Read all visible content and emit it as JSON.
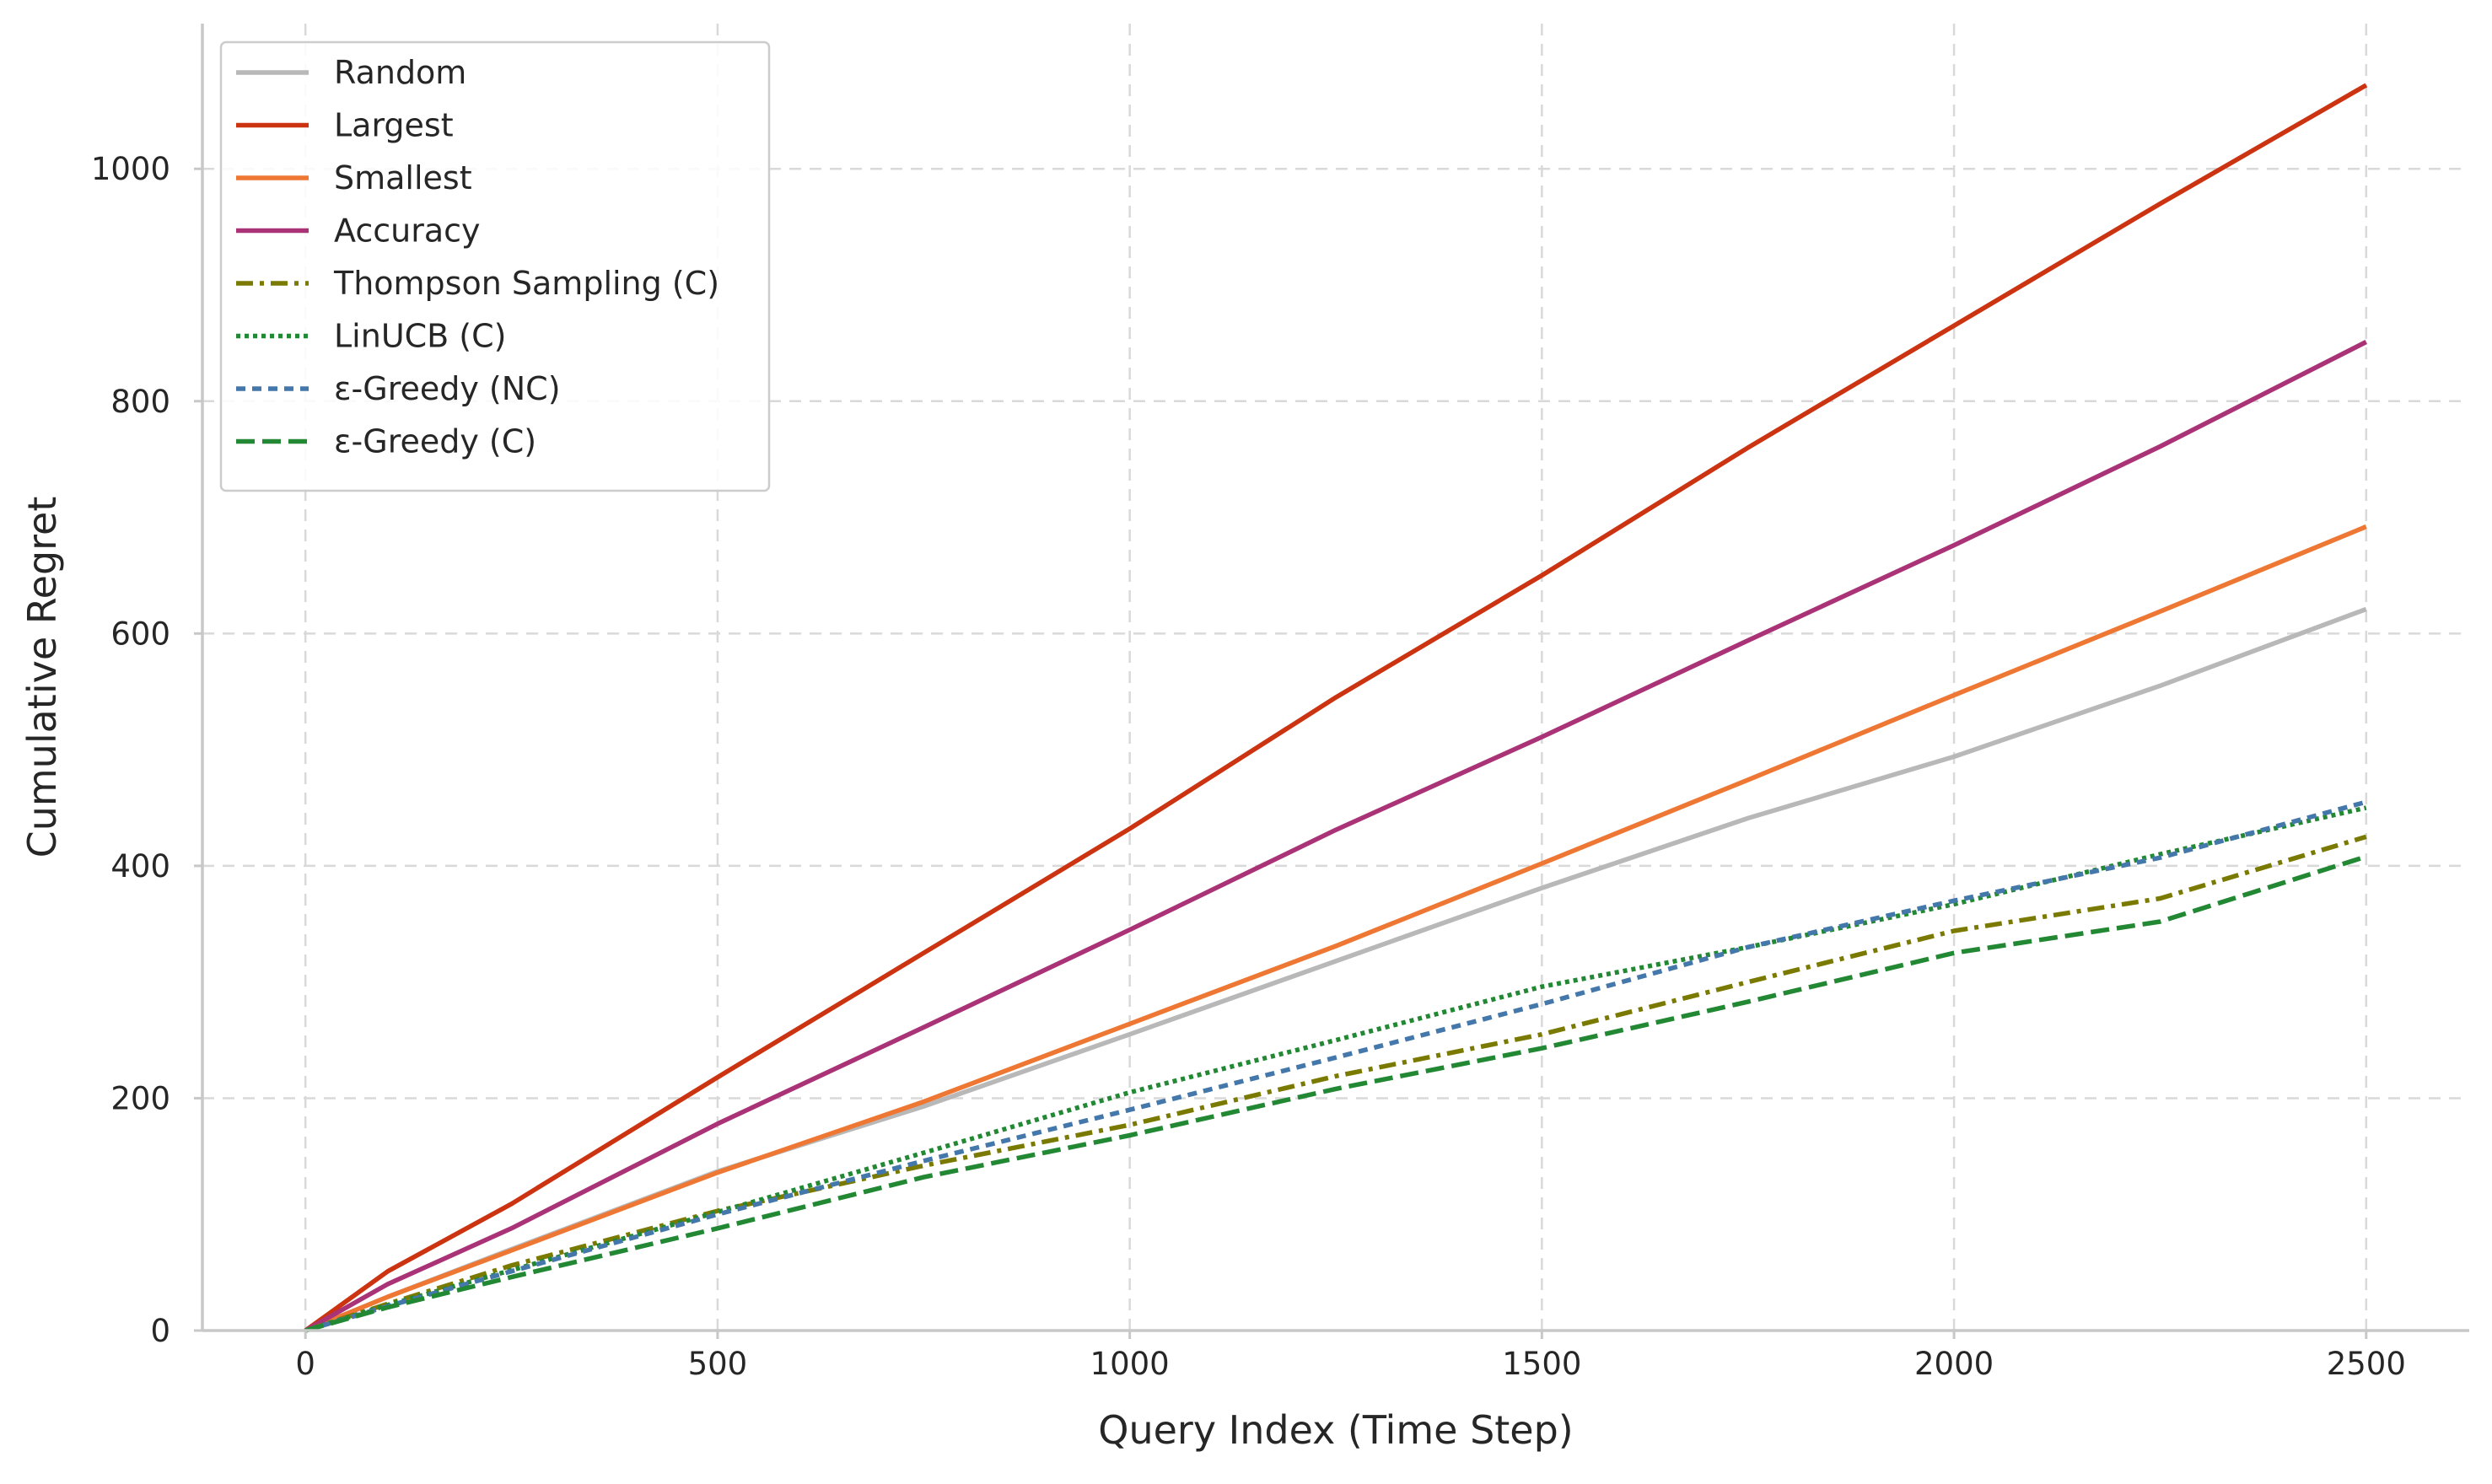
{
  "chart_data": {
    "type": "line",
    "title": "",
    "xlabel": "Query Index (Time Step)",
    "ylabel": "Cumulative Regret",
    "xlim": [
      -125,
      2625
    ],
    "ylim": [
      0,
      1125
    ],
    "xticks": [
      0,
      500,
      1000,
      1500,
      2000,
      2500
    ],
    "yticks": [
      0,
      200,
      400,
      600,
      800,
      1000
    ],
    "grid": true,
    "legend_position": "top-left",
    "series": [
      {
        "name": "Random",
        "color": "#b8b8b8",
        "dash": "solid",
        "x": [
          0,
          100,
          250,
          500,
          750,
          1000,
          1250,
          1500,
          1750,
          2000,
          2250,
          2500
        ],
        "y": [
          0,
          29,
          70,
          137,
          193,
          255,
          318,
          381,
          441,
          494,
          555,
          621
        ]
      },
      {
        "name": "Largest",
        "color": "#cc3311",
        "dash": "solid",
        "x": [
          0,
          100,
          250,
          500,
          750,
          1000,
          1250,
          1500,
          1750,
          2000,
          2250,
          2500
        ],
        "y": [
          0,
          51,
          109,
          218,
          325,
          432,
          545,
          650,
          760,
          865,
          970,
          1072
        ]
      },
      {
        "name": "Smallest",
        "color": "#ee7733",
        "dash": "solid",
        "x": [
          0,
          100,
          250,
          500,
          750,
          1000,
          1250,
          1500,
          1750,
          2000,
          2250,
          2500
        ],
        "y": [
          0,
          29,
          69,
          136,
          197,
          264,
          331,
          402,
          474,
          547,
          619,
          692
        ]
      },
      {
        "name": "Accuracy",
        "color": "#aa3377",
        "dash": "solid",
        "x": [
          0,
          100,
          250,
          500,
          750,
          1000,
          1250,
          1500,
          1750,
          2000,
          2250,
          2500
        ],
        "y": [
          0,
          40,
          88,
          178,
          261,
          345,
          431,
          511,
          594,
          676,
          761,
          851
        ]
      },
      {
        "name": "Thompson Sampling (C)",
        "color": "#7a7a00",
        "dash": "dashdot",
        "x": [
          0,
          100,
          250,
          500,
          750,
          1000,
          1250,
          1500,
          1750,
          2000,
          2250,
          2500
        ],
        "y": [
          0,
          23,
          56,
          103,
          142,
          177,
          219,
          255,
          300,
          344,
          372,
          425
        ]
      },
      {
        "name": "LinUCB (C)",
        "color": "#228833",
        "dash": "dotted",
        "x": [
          0,
          100,
          250,
          500,
          750,
          1000,
          1250,
          1500,
          1750,
          2000,
          2250,
          2500
        ],
        "y": [
          0,
          22,
          52,
          102,
          153,
          205,
          250,
          296,
          330,
          367,
          410,
          450
        ]
      },
      {
        "name": "ε-Greedy (NC)",
        "color": "#4477aa",
        "dash": "dashed",
        "x": [
          0,
          100,
          250,
          500,
          750,
          1000,
          1250,
          1500,
          1750,
          2000,
          2250,
          2500
        ],
        "y": [
          0,
          21,
          51,
          100,
          146,
          190,
          235,
          281,
          330,
          370,
          407,
          455
        ]
      },
      {
        "name": "ε-Greedy (C)",
        "color": "#228833",
        "dash": "longdash",
        "x": [
          0,
          100,
          250,
          500,
          750,
          1000,
          1250,
          1500,
          1750,
          2000,
          2250,
          2500
        ],
        "y": [
          0,
          20,
          46,
          88,
          132,
          168,
          208,
          243,
          283,
          325,
          352,
          408
        ]
      }
    ]
  }
}
